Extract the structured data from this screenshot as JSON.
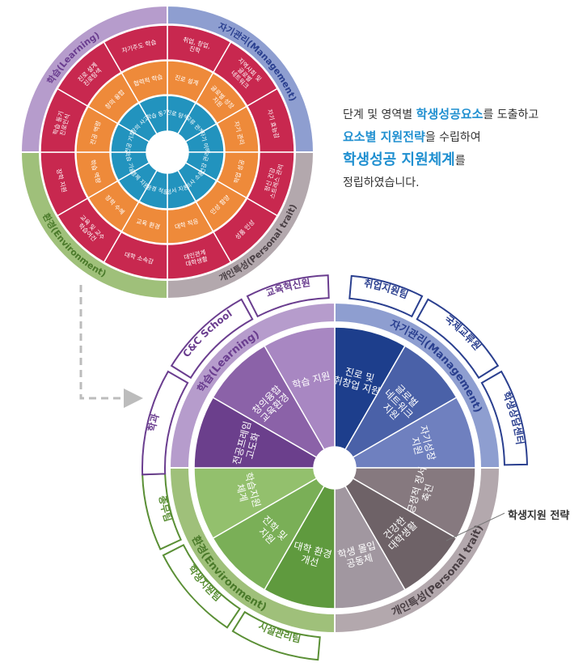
{
  "intro": {
    "l1a": "단계 및 영역별 ",
    "l1b": "학생성공요소",
    "l1c": "를 도출하고",
    "l2a": "요소별 지원전략",
    "l2b": "을 수립하여",
    "l3a": "학생성공 지원체계",
    "l3b": "를",
    "l4": "정립하였습니다."
  },
  "callout": "학생지원 전략",
  "colors": {
    "learning": "#b69ccc",
    "management": "#8e9ed0",
    "environment": "#9fc07a",
    "personal": "#b3a8ad",
    "red": "#c8284f",
    "orange": "#ee8a3a",
    "teal": "#2293be"
  },
  "top_wheel": {
    "domains": [
      {
        "key": "management",
        "label": "자기관리(Management)",
        "color": "#8e9ed0",
        "text": "#2a3f8f"
      },
      {
        "key": "personal",
        "label": "개인특성(Personal trait)",
        "color": "#b3a8ad",
        "text": "#4a4045"
      },
      {
        "key": "environment",
        "label": "환경(Environment)",
        "color": "#9fc07a",
        "text": "#4a7a2a"
      },
      {
        "key": "learning",
        "label": "학습(Learning)",
        "color": "#b69ccc",
        "text": "#6a3d8f"
      }
    ],
    "outer": [
      "취업, 창업, 진학",
      "지역사회 및 글로벌 네트워크",
      "자기 효능감",
      "정신 건강 스트레스 관리",
      "성품 인성",
      "대인관계 대학생활",
      "대학 소속감",
      "교육 및 교수 학습여건",
      "장학 지원",
      "학습 동기 진로인식",
      "진로 설계 진로탐색",
      "자기주도 학습"
    ],
    "middle": [
      "진로 설계",
      "글로벌 성장 지원",
      "자기 관리",
      "학업 성공",
      "인성 함양",
      "대학 적응",
      "교육 환경",
      "장학 수혜",
      "학습 역량",
      "전공 역량",
      "창의 융합",
      "협력적 학습"
    ],
    "inner": [
      "진로 탐색",
      "교류 관계",
      "자기 이해",
      "건강 관리",
      "의사 소통",
      "정서 지원",
      "환경 적응",
      "경제 지원",
      "학습 기술",
      "전공 기초",
      "창의 사고",
      "학습 동기"
    ]
  },
  "bottom_wheel": {
    "domains": [
      {
        "key": "management",
        "label": "자기관리(Management)",
        "color": "#8e9ed0",
        "text": "#2a3f8f"
      },
      {
        "key": "personal",
        "label": "개인특성(Personal trait)",
        "color": "#b3a8ad",
        "text": "#4a4045"
      },
      {
        "key": "environment",
        "label": "환경(Environment)",
        "color": "#9fc07a",
        "text": "#4a7a2a"
      },
      {
        "key": "learning",
        "label": "학습(Learning)",
        "color": "#b69ccc",
        "text": "#6a3d8f"
      }
    ],
    "sectors": [
      {
        "label": "진로 및 취창업 지원",
        "color": "#1d3e8c"
      },
      {
        "label": "글로벌 네트워크 지원",
        "color": "#4a61a8"
      },
      {
        "label": "자기성장 지원",
        "color": "#6f80bf"
      },
      {
        "label": "긍정적 정서 축진",
        "color": "#86797f"
      },
      {
        "label": "건강한 대학생활",
        "color": "#6e6267"
      },
      {
        "label": "학생 몰입 공동체",
        "color": "#a197a0"
      },
      {
        "label": "대학 환경 개선",
        "color": "#5f9a3e"
      },
      {
        "label": "진학 및 지원",
        "color": "#7aaf57"
      },
      {
        "label": "학습지원 체계",
        "color": "#93c06d"
      },
      {
        "label": "전공프레임 고도화",
        "color": "#6b3f8c"
      },
      {
        "label": "창의융합 교육환경",
        "color": "#8b62a8"
      },
      {
        "label": "학습 지원",
        "color": "#a887c2"
      }
    ],
    "offices": [
      {
        "label": "취업지원팀",
        "group": "management"
      },
      {
        "label": "국제교류원",
        "group": "management"
      },
      {
        "label": "학생상담센터",
        "group": "management"
      },
      {
        "label": "시설관리팀",
        "group": "environment"
      },
      {
        "label": "학생지원팀",
        "group": "environment"
      },
      {
        "label": "총무팀",
        "group": "environment"
      },
      {
        "label": "학과",
        "group": "learning"
      },
      {
        "label": "C&C School",
        "group": "learning"
      },
      {
        "label": "교육혁신원",
        "group": "learning"
      }
    ]
  }
}
